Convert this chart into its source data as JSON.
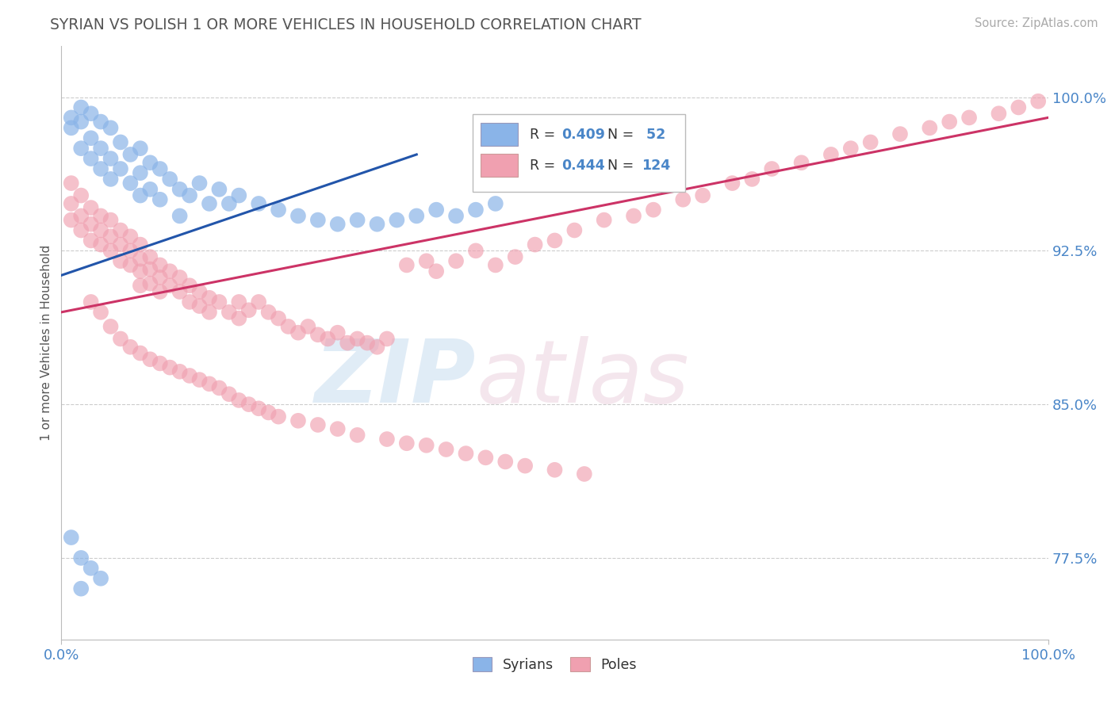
{
  "title": "SYRIAN VS POLISH 1 OR MORE VEHICLES IN HOUSEHOLD CORRELATION CHART",
  "ylabel": "1 or more Vehicles in Household",
  "source": "Source: ZipAtlas.com",
  "watermark_zip": "ZIP",
  "watermark_atlas": "atlas",
  "xlim": [
    0.0,
    1.0
  ],
  "ylim": [
    0.735,
    1.025
  ],
  "yticks": [
    0.775,
    0.85,
    0.925,
    1.0
  ],
  "ytick_labels": [
    "77.5%",
    "85.0%",
    "92.5%",
    "100.0%"
  ],
  "xtick_labels": [
    "0.0%",
    "100.0%"
  ],
  "xticks": [
    0.0,
    1.0
  ],
  "syrian_R": 0.409,
  "syrian_N": 52,
  "polish_R": 0.444,
  "polish_N": 124,
  "syrian_color": "#8ab4e8",
  "polish_color": "#f0a0b0",
  "syrian_line_color": "#2255aa",
  "polish_line_color": "#cc3366",
  "background_color": "#ffffff",
  "grid_color": "#cccccc",
  "title_color": "#555555",
  "axis_label_color": "#4a86c8",
  "legend_box_color": "#cccccc",
  "syrian_label": "Syrians",
  "polish_label": "Poles",
  "syrian_line_x0": 0.0,
  "syrian_line_x1": 0.36,
  "syrian_line_y0": 0.913,
  "syrian_line_y1": 0.972,
  "polish_line_x0": 0.0,
  "polish_line_x1": 1.0,
  "polish_line_y0": 0.895,
  "polish_line_y1": 0.99
}
